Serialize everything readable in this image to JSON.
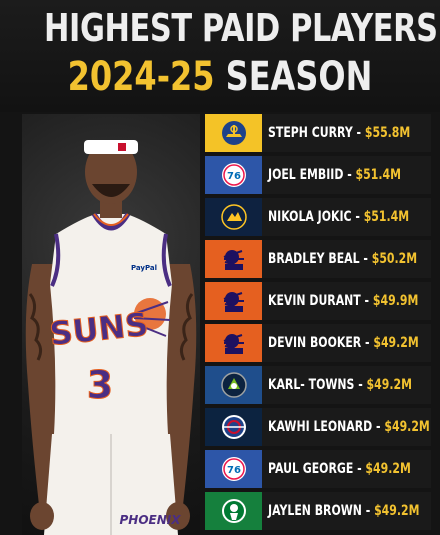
{
  "header": {
    "title_line1": "HIGHEST PAID PLAYERS",
    "title_year": "2024-25",
    "title_season": "SEASON"
  },
  "player_image": {
    "jersey_team": "SUNS",
    "jersey_number": "3",
    "jersey_sponsor": "PayPal",
    "shorts_text": "PHOENIX"
  },
  "players": [
    {
      "name": "STEPH CURRY",
      "salary": "$55.8M",
      "team_icon": "warriors-logo-icon",
      "logo_bg": "#f4c327",
      "logo_color": "#1d428a"
    },
    {
      "name": "JOEL EMBIID",
      "salary": "$51.4M",
      "team_icon": "76ers-logo-icon",
      "logo_bg": "#2d56a8",
      "logo_color": "#ed174c"
    },
    {
      "name": "NIKOLA JOKIC",
      "salary": "$51.4M",
      "team_icon": "nuggets-logo-icon",
      "logo_bg": "#0e2240",
      "logo_color": "#fec524"
    },
    {
      "name": "BRADLEY BEAL",
      "salary": "$50.2M",
      "team_icon": "suns-logo-icon",
      "logo_bg": "#e56020",
      "logo_color": "#1d1160"
    },
    {
      "name": "KEVIN DURANT",
      "salary": "$49.9M",
      "team_icon": "suns-logo-icon",
      "logo_bg": "#e56020",
      "logo_color": "#1d1160"
    },
    {
      "name": "DEVIN BOOKER",
      "salary": "$49.2M",
      "team_icon": "suns-logo-icon",
      "logo_bg": "#e56020",
      "logo_color": "#1d1160"
    },
    {
      "name": "KARL- TOWNS",
      "salary": "$49.2M",
      "team_icon": "timberwolves-logo-icon",
      "logo_bg": "#1f4e8c",
      "logo_color": "#78be20"
    },
    {
      "name": "KAWHI LEONARD",
      "salary": "$49.2M",
      "team_icon": "clippers-logo-icon",
      "logo_bg": "#0c2340",
      "logo_color": "#c8102e"
    },
    {
      "name": "PAUL GEORGE",
      "salary": "$49.2M",
      "team_icon": "76ers-logo-icon",
      "logo_bg": "#2d56a8",
      "logo_color": "#ed174c"
    },
    {
      "name": "JAYLEN BROWN",
      "salary": "$49.2M",
      "team_icon": "celtics-logo-icon",
      "logo_bg": "#15803d",
      "logo_color": "#ffffff"
    }
  ],
  "colors": {
    "accent_gold": "#f2c230",
    "background": "#141414",
    "text_white": "#ffffff"
  }
}
